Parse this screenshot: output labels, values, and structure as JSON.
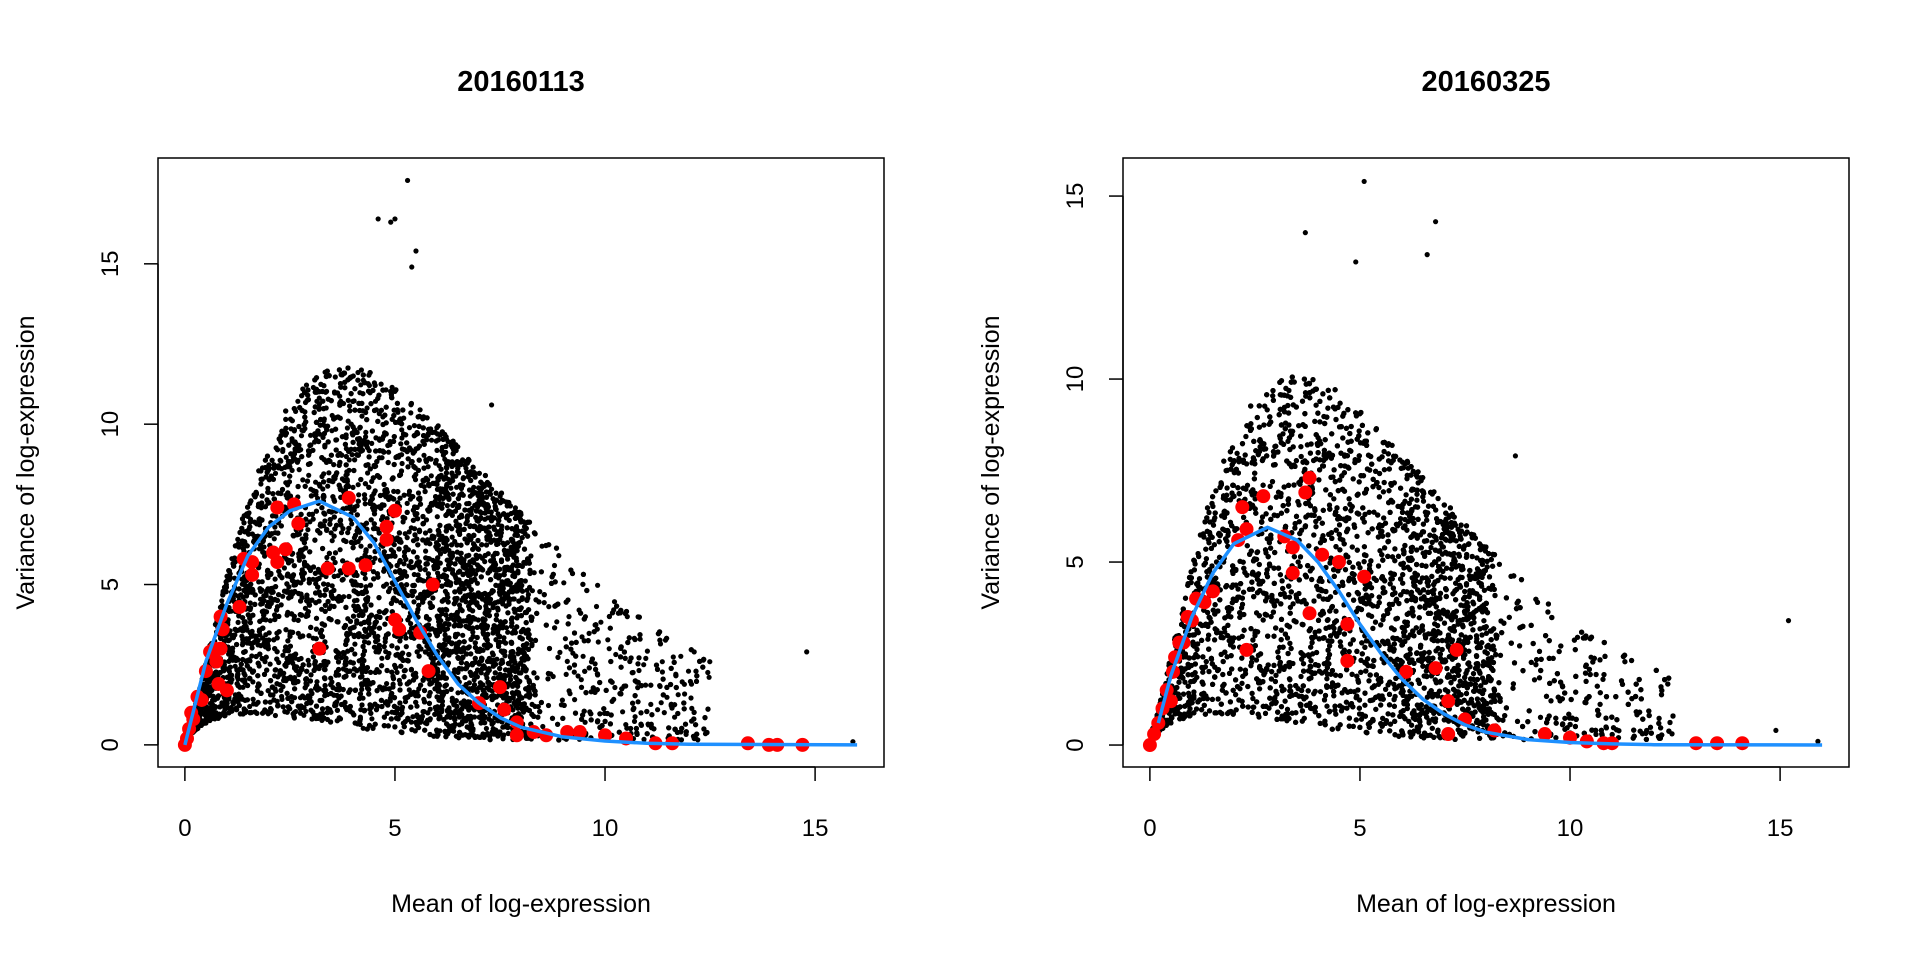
{
  "chart_data": [
    {
      "type": "scatter",
      "title": "20160113",
      "xlabel": "Mean of log-expression",
      "ylabel": "Variance of log-expression",
      "xlim": [
        -0.64,
        16.64
      ],
      "ylim": [
        -0.69,
        18.3
      ],
      "xticks": [
        "0",
        "5",
        "10",
        "15"
      ],
      "yticks": [
        "0",
        "5",
        "10",
        "15"
      ],
      "grid": false,
      "colors": {
        "genes": "#000000",
        "spike_ins": "#ff0000",
        "trend": "#1e90ff"
      },
      "gene_cloud": {
        "peak_x": 3.8,
        "upper_envelope_peak": 11.5,
        "x_max": 16
      },
      "gene_outliers": [
        [
          5.3,
          17.6
        ],
        [
          4.6,
          16.4
        ],
        [
          4.9,
          16.3
        ],
        [
          5.0,
          16.4
        ],
        [
          5.5,
          15.4
        ],
        [
          5.4,
          14.9
        ],
        [
          10.1,
          3.0
        ],
        [
          11.3,
          1.85
        ],
        [
          14.8,
          2.9
        ],
        [
          15.9,
          0.1
        ],
        [
          8.9,
          5.9
        ],
        [
          7.3,
          10.6
        ]
      ],
      "spike_ins": [
        [
          0,
          0
        ],
        [
          0.05,
          0.2
        ],
        [
          0.1,
          0.5
        ],
        [
          0.15,
          1
        ],
        [
          0.2,
          0.8
        ],
        [
          0.3,
          1.5
        ],
        [
          0.4,
          1.4
        ],
        [
          0.5,
          2.3
        ],
        [
          0.6,
          2.9
        ],
        [
          0.7,
          3.0
        ],
        [
          0.75,
          2.6
        ],
        [
          0.8,
          1.9
        ],
        [
          0.85,
          3.0
        ],
        [
          0.9,
          3.6
        ],
        [
          0.85,
          4.0
        ],
        [
          1.0,
          1.7
        ],
        [
          1.3,
          4.3
        ],
        [
          1.4,
          5.8
        ],
        [
          1.6,
          5.3
        ],
        [
          1.6,
          5.7
        ],
        [
          2.1,
          6.0
        ],
        [
          2.2,
          7.4
        ],
        [
          2.2,
          5.7
        ],
        [
          2.4,
          6.1
        ],
        [
          2.6,
          7.5
        ],
        [
          2.7,
          6.9
        ],
        [
          3.2,
          3.0
        ],
        [
          3.4,
          5.5
        ],
        [
          3.9,
          5.5
        ],
        [
          3.9,
          7.7
        ],
        [
          4.3,
          5.6
        ],
        [
          4.8,
          6.8
        ],
        [
          4.8,
          6.4
        ],
        [
          5.0,
          7.3
        ],
        [
          5.0,
          3.9
        ],
        [
          5.1,
          3.6
        ],
        [
          5.9,
          5.0
        ],
        [
          5.8,
          2.3
        ],
        [
          5.6,
          3.5
        ],
        [
          7.0,
          1.3
        ],
        [
          7.5,
          1.8
        ],
        [
          7.6,
          1.1
        ],
        [
          7.9,
          0.7
        ],
        [
          7.9,
          0.3
        ],
        [
          8.3,
          0.4
        ],
        [
          8.6,
          0.3
        ],
        [
          9.1,
          0.4
        ],
        [
          9.4,
          0.4
        ],
        [
          10.0,
          0.3
        ],
        [
          10.5,
          0.2
        ],
        [
          11.2,
          0.05
        ],
        [
          11.6,
          0.05
        ],
        [
          13.4,
          0.05
        ],
        [
          13.9,
          0.0
        ],
        [
          14.1,
          0.0
        ],
        [
          14.7,
          0.0
        ]
      ],
      "trend": [
        [
          0,
          0
        ],
        [
          0.5,
          2.6
        ],
        [
          1,
          4.4
        ],
        [
          1.5,
          5.9
        ],
        [
          2,
          6.8
        ],
        [
          2.5,
          7.3
        ],
        [
          3.2,
          7.6
        ],
        [
          4,
          7.1
        ],
        [
          4.5,
          6.3
        ],
        [
          5,
          5.1
        ],
        [
          5.5,
          3.9
        ],
        [
          6,
          2.8
        ],
        [
          6.5,
          1.9
        ],
        [
          7,
          1.3
        ],
        [
          7.5,
          0.85
        ],
        [
          8,
          0.55
        ],
        [
          9,
          0.25
        ],
        [
          10,
          0.12
        ],
        [
          11,
          0.05
        ],
        [
          12,
          0.02
        ],
        [
          16,
          0.0
        ]
      ]
    },
    {
      "type": "scatter",
      "title": "20160325",
      "xlabel": "Mean of log-expression",
      "ylabel": "Variance of log-expression",
      "xlim": [
        -0.64,
        16.64
      ],
      "ylim": [
        -0.6,
        16.04
      ],
      "xticks": [
        "0",
        "5",
        "10",
        "15"
      ],
      "yticks": [
        "0",
        "5",
        "10",
        "15"
      ],
      "grid": false,
      "colors": {
        "genes": "#000000",
        "spike_ins": "#ff0000",
        "trend": "#1e90ff"
      },
      "gene_cloud": {
        "peak_x": 3.5,
        "upper_envelope_peak": 9.8,
        "x_max": 16
      },
      "gene_outliers": [
        [
          5.1,
          15.4
        ],
        [
          6.8,
          14.3
        ],
        [
          3.7,
          14.0
        ],
        [
          8.7,
          7.9
        ],
        [
          15.2,
          3.4
        ],
        [
          10.5,
          2.4
        ],
        [
          14.9,
          0.4
        ],
        [
          4.9,
          13.2
        ],
        [
          6.6,
          13.4
        ],
        [
          15.9,
          0.1
        ]
      ],
      "spike_ins": [
        [
          0,
          0
        ],
        [
          0.1,
          0.3
        ],
        [
          0.2,
          0.6
        ],
        [
          0.3,
          1.0
        ],
        [
          0.4,
          1.5
        ],
        [
          0.5,
          1.2
        ],
        [
          0.55,
          2.0
        ],
        [
          0.6,
          2.4
        ],
        [
          0.7,
          2.8
        ],
        [
          0.8,
          2.8
        ],
        [
          0.9,
          3.5
        ],
        [
          1.0,
          3.4
        ],
        [
          1.1,
          4.0
        ],
        [
          1.3,
          3.9
        ],
        [
          1.5,
          4.2
        ],
        [
          2.1,
          5.6
        ],
        [
          2.2,
          6.5
        ],
        [
          2.3,
          5.9
        ],
        [
          2.3,
          2.6
        ],
        [
          2.7,
          6.8
        ],
        [
          3.2,
          5.7
        ],
        [
          3.4,
          4.7
        ],
        [
          3.4,
          5.4
        ],
        [
          3.7,
          6.9
        ],
        [
          3.8,
          7.3
        ],
        [
          3.8,
          3.6
        ],
        [
          4.1,
          5.2
        ],
        [
          4.5,
          5.0
        ],
        [
          4.7,
          3.3
        ],
        [
          4.7,
          2.3
        ],
        [
          5.1,
          4.6
        ],
        [
          6.1,
          2.0
        ],
        [
          6.8,
          2.1
        ],
        [
          7.1,
          1.2
        ],
        [
          7.1,
          0.3
        ],
        [
          7.3,
          2.6
        ],
        [
          7.5,
          0.7
        ],
        [
          8.2,
          0.4
        ],
        [
          9.4,
          0.3
        ],
        [
          10.0,
          0.2
        ],
        [
          10.4,
          0.1
        ],
        [
          10.8,
          0.05
        ],
        [
          11.0,
          0.05
        ],
        [
          13.0,
          0.05
        ],
        [
          13.5,
          0.05
        ],
        [
          14.1,
          0.05
        ]
      ],
      "trend": [
        [
          0.2,
          0.6
        ],
        [
          0.5,
          1.9
        ],
        [
          1,
          3.5
        ],
        [
          1.5,
          4.7
        ],
        [
          2,
          5.5
        ],
        [
          2.8,
          5.95
        ],
        [
          3.5,
          5.6
        ],
        [
          4,
          5.0
        ],
        [
          4.5,
          4.2
        ],
        [
          5,
          3.3
        ],
        [
          5.5,
          2.5
        ],
        [
          6,
          1.8
        ],
        [
          6.5,
          1.25
        ],
        [
          7,
          0.85
        ],
        [
          7.5,
          0.55
        ],
        [
          8,
          0.35
        ],
        [
          9,
          0.15
        ],
        [
          10,
          0.07
        ],
        [
          11,
          0.03
        ],
        [
          12,
          0.01
        ],
        [
          16,
          0
        ]
      ]
    }
  ]
}
